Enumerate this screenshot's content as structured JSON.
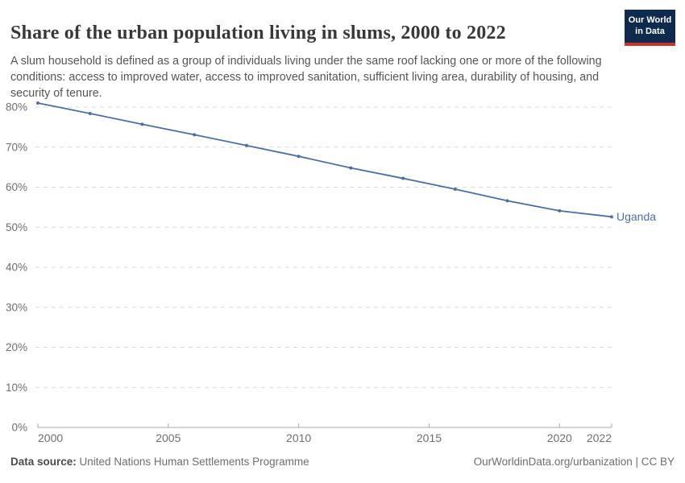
{
  "header": {
    "logo": {
      "line1": "Our World",
      "line2": "in Data",
      "bg_color": "#0e2a4e",
      "accent_color": "#cc3229"
    }
  },
  "chart_data": {
    "type": "line",
    "title": "Share of the urban population living in slums, 2000 to 2022",
    "subtitle": "A slum household is defined as a group of individuals living under the same roof lacking one or more of the following conditions: access to improved water, access to improved sanitation, sufficient living area, durability of housing, and security of tenure.",
    "x": [
      2000,
      2002,
      2004,
      2006,
      2008,
      2010,
      2012,
      2014,
      2016,
      2018,
      2020,
      2022
    ],
    "series": [
      {
        "name": "Uganda",
        "values": [
          81.0,
          78.4,
          75.7,
          73.1,
          70.4,
          67.7,
          64.8,
          62.2,
          59.5,
          56.6,
          54.1,
          52.6
        ],
        "color": "#4b6ea9"
      }
    ],
    "xlim": [
      2000,
      2022
    ],
    "ylim": [
      0,
      84
    ],
    "xticks": [
      2000,
      2005,
      2010,
      2015,
      2020,
      2022
    ],
    "yticks": [
      0,
      10,
      20,
      30,
      40,
      50,
      60,
      70,
      80
    ],
    "ytick_suffix": "%",
    "grid": "horizontal-dashed",
    "legend_position": "end-of-line-label",
    "axis_color": "#a8a8a8",
    "grid_color": "#d9d9d9",
    "tick_label_color": "#6e6e6e"
  },
  "footer": {
    "data_source_label": "Data source:",
    "data_source": "United Nations Human Settlements Programme",
    "credit": "OurWorldinData.org/urbanization | CC BY"
  }
}
